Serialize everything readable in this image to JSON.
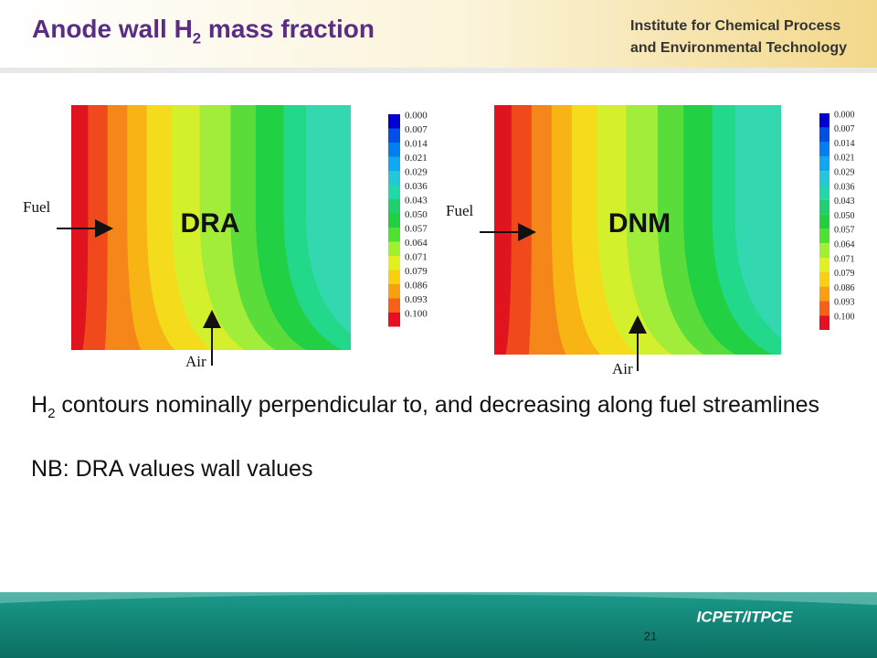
{
  "header": {
    "title": [
      "Anode wall H",
      "2",
      " mass fraction"
    ],
    "institute": [
      "Institute for Chemical Process",
      "and Environmental Technology"
    ]
  },
  "panels": [
    {
      "name": "DRA",
      "inlet_label": "Fuel",
      "air_label": "Air",
      "legend": [
        "0.000",
        "0.007",
        "0.014",
        "0.021",
        "0.029",
        "0.036",
        "0.043",
        "0.050",
        "0.057",
        "0.064",
        "0.071",
        "0.079",
        "0.086",
        "0.093",
        "0.100"
      ]
    },
    {
      "name": "DNM",
      "inlet_label": "Fuel",
      "air_label": "Air",
      "legend": [
        "0.000",
        "0.007",
        "0.014",
        "0.021",
        "0.029",
        "0.036",
        "0.043",
        "0.050",
        "0.057",
        "0.064",
        "0.071",
        "0.079",
        "0.086",
        "0.093",
        "0.100"
      ]
    }
  ],
  "body": {
    "bullet": [
      "H",
      "2",
      " contours nominally perpendicular to, and decreasing along fuel streamlines"
    ],
    "note": "NB: DRA values wall values"
  },
  "footer": {
    "page_number": 21,
    "logo": "ICPET/ITPCE"
  }
}
